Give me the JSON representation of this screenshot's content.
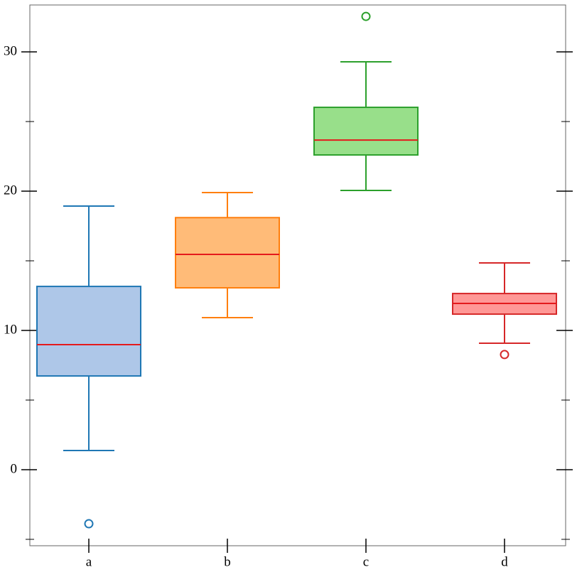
{
  "chart_data": {
    "type": "box",
    "categories": [
      "a",
      "b",
      "c",
      "d"
    ],
    "ylim": [
      -5.46,
      33.37
    ],
    "yticks": [
      0,
      10,
      20,
      30
    ],
    "minor_yticks": [
      -5,
      5,
      15,
      25
    ],
    "median_color": "#e41a1c",
    "boxes": [
      {
        "color": "#1f77b4",
        "fill": "#aec7e8",
        "min": 1.38,
        "q1": 6.73,
        "median": 8.98,
        "q3": 13.16,
        "max": 18.93,
        "outliers": [
          -3.88
        ]
      },
      {
        "color": "#ff7f0e",
        "fill": "#ffbb78",
        "min": 10.92,
        "q1": 13.06,
        "median": 15.46,
        "q3": 18.1,
        "max": 19.9,
        "outliers": []
      },
      {
        "color": "#2ca02c",
        "fill": "#98df8a",
        "min": 20.05,
        "q1": 22.6,
        "median": 23.67,
        "q3": 26.02,
        "max": 29.29,
        "outliers": [
          32.55
        ]
      },
      {
        "color": "#d62728",
        "fill": "#ff9896",
        "min": 9.08,
        "q1": 11.17,
        "median": 11.94,
        "q3": 12.65,
        "max": 14.85,
        "outliers": [
          8.27
        ]
      }
    ]
  }
}
